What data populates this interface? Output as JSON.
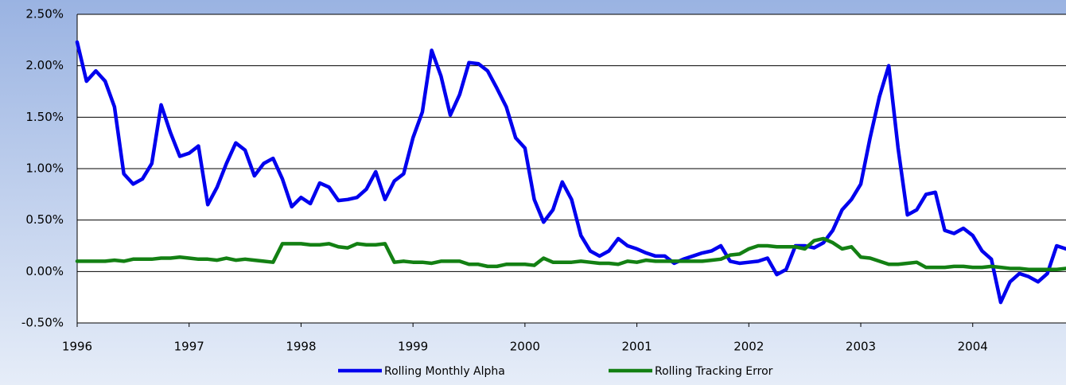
{
  "chart_data": {
    "type": "line",
    "categories": [
      "1996",
      null,
      null,
      null,
      null,
      null,
      null,
      null,
      null,
      null,
      null,
      null,
      "1997",
      null,
      null,
      null,
      null,
      null,
      null,
      null,
      null,
      null,
      null,
      null,
      "1998",
      null,
      null,
      null,
      null,
      null,
      null,
      null,
      null,
      null,
      null,
      null,
      "1999",
      null,
      null,
      null,
      null,
      null,
      null,
      null,
      null,
      null,
      null,
      null,
      "2000",
      null,
      null,
      null,
      null,
      null,
      null,
      null,
      null,
      null,
      null,
      null,
      "2001",
      null,
      null,
      null,
      null,
      null,
      null,
      null,
      null,
      null,
      null,
      null,
      "2002",
      null,
      null,
      null,
      null,
      null,
      null,
      null,
      null,
      null,
      null,
      null,
      "2003",
      null,
      null,
      null,
      null,
      null,
      null,
      null,
      null,
      null,
      null,
      null,
      "2004",
      null,
      null,
      null,
      null,
      null,
      null,
      null,
      null,
      null,
      null
    ],
    "series": [
      {
        "name": "Rolling Monthly Alpha",
        "color": "#0000ee",
        "values": [
          2.23,
          1.85,
          1.95,
          1.85,
          1.6,
          0.95,
          0.85,
          0.9,
          1.05,
          1.62,
          1.35,
          1.12,
          1.15,
          1.22,
          0.65,
          0.82,
          1.05,
          1.25,
          1.18,
          0.93,
          1.05,
          1.1,
          0.9,
          0.63,
          0.72,
          0.66,
          0.86,
          0.82,
          0.69,
          0.7,
          0.72,
          0.8,
          0.97,
          0.7,
          0.88,
          0.95,
          1.3,
          1.55,
          2.15,
          1.9,
          1.52,
          1.72,
          2.03,
          2.02,
          1.95,
          1.78,
          1.6,
          1.3,
          1.2,
          0.7,
          0.48,
          0.6,
          0.87,
          0.7,
          0.35,
          0.2,
          0.15,
          0.2,
          0.32,
          0.25,
          0.22,
          0.18,
          0.15,
          0.15,
          0.08,
          0.12,
          0.15,
          0.18,
          0.2,
          0.25,
          0.1,
          0.08,
          0.09,
          0.1,
          0.13,
          -0.03,
          0.02,
          0.25,
          0.25,
          0.23,
          0.28,
          0.4,
          0.6,
          0.7,
          0.85,
          1.3,
          1.7,
          2.0,
          1.2,
          0.55,
          0.6,
          0.75,
          0.77,
          0.4,
          0.37,
          0.42,
          0.35,
          0.2,
          0.12,
          -0.3,
          -0.1,
          -0.02,
          -0.05,
          -0.1,
          -0.02,
          0.25,
          0.22
        ]
      },
      {
        "name": "Rolling Tracking Error",
        "color": "#138013",
        "values": [
          0.1,
          0.1,
          0.1,
          0.1,
          0.11,
          0.1,
          0.12,
          0.12,
          0.12,
          0.13,
          0.13,
          0.14,
          0.13,
          0.12,
          0.12,
          0.11,
          0.13,
          0.11,
          0.12,
          0.11,
          0.1,
          0.09,
          0.27,
          0.27,
          0.27,
          0.26,
          0.26,
          0.27,
          0.24,
          0.23,
          0.27,
          0.26,
          0.26,
          0.27,
          0.09,
          0.1,
          0.09,
          0.09,
          0.08,
          0.1,
          0.1,
          0.1,
          0.07,
          0.07,
          0.05,
          0.05,
          0.07,
          0.07,
          0.07,
          0.06,
          0.13,
          0.09,
          0.09,
          0.09,
          0.1,
          0.09,
          0.08,
          0.08,
          0.07,
          0.1,
          0.09,
          0.11,
          0.1,
          0.1,
          0.1,
          0.1,
          0.1,
          0.1,
          0.11,
          0.12,
          0.16,
          0.17,
          0.22,
          0.25,
          0.25,
          0.24,
          0.24,
          0.24,
          0.22,
          0.3,
          0.32,
          0.28,
          0.22,
          0.24,
          0.14,
          0.13,
          0.1,
          0.07,
          0.07,
          0.08,
          0.09,
          0.04,
          0.04,
          0.04,
          0.05,
          0.05,
          0.04,
          0.04,
          0.05,
          0.04,
          0.03,
          0.03,
          0.02,
          0.02,
          0.02,
          0.02,
          0.03
        ]
      }
    ],
    "ylim": [
      -0.5,
      2.5
    ],
    "yticks": [
      {
        "value": -0.5,
        "label": "-0.50%"
      },
      {
        "value": 0,
        "label": "0.00%"
      },
      {
        "value": 0.5,
        "label": "0.50%"
      },
      {
        "value": 1,
        "label": "1.00%"
      },
      {
        "value": 1.5,
        "label": "1.50%"
      },
      {
        "value": 2,
        "label": "2.00%"
      },
      {
        "value": 2.5,
        "label": "2.50%"
      }
    ],
    "grid": true,
    "legend": "bottom"
  }
}
